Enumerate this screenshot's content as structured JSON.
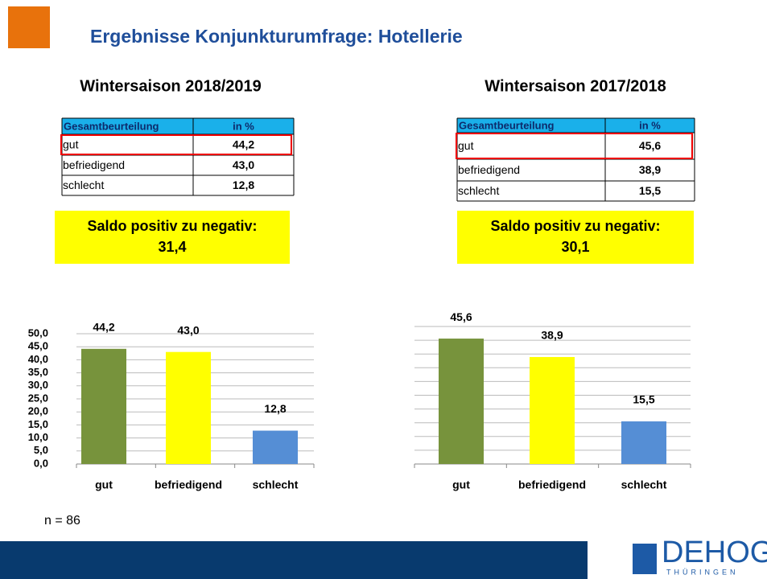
{
  "header": {
    "title": "Ergebnisse Konjunkturumfrage: Hotellerie"
  },
  "panels": [
    {
      "season": "Wintersaison 2018/2019",
      "table": {
        "columns": [
          "Gesamtbeurteilung",
          "in %"
        ],
        "rows": [
          [
            "gut",
            "44,2"
          ],
          [
            "befriedigend",
            "43,0"
          ],
          [
            "schlecht",
            "12,8"
          ]
        ]
      },
      "saldo": {
        "label": "Saldo positiv zu negativ:",
        "value": "31,4"
      }
    },
    {
      "season": "Wintersaison 2017/2018",
      "table": {
        "columns": [
          "Gesamtbeurteilung",
          "in %"
        ],
        "rows": [
          [
            "gut",
            "45,6"
          ],
          [
            "befriedigend",
            "38,9"
          ],
          [
            "schlecht",
            "15,5"
          ]
        ]
      },
      "saldo": {
        "label": "Saldo positiv zu negativ:",
        "value": "30,1"
      }
    }
  ],
  "chart_data": [
    {
      "type": "bar",
      "categories": [
        "gut",
        "befriedigend",
        "schlecht"
      ],
      "values": [
        44.2,
        43.0,
        12.8
      ],
      "value_labels": [
        "44,2",
        "43,0",
        "12,8"
      ],
      "colors": [
        "#77933c",
        "#ffff00",
        "#558ed5"
      ],
      "ylim": [
        0,
        50
      ],
      "grid": true,
      "tick_labels": true,
      "yticks": [
        {
          "value": 0,
          "label": "0,0"
        },
        {
          "value": 5,
          "label": "5,0"
        },
        {
          "value": 10,
          "label": "10,0"
        },
        {
          "value": 15,
          "label": "15,0"
        },
        {
          "value": 20,
          "label": "20,0"
        },
        {
          "value": 25,
          "label": "25,0"
        },
        {
          "value": 30,
          "label": "30,0"
        },
        {
          "value": 35,
          "label": "35,0"
        },
        {
          "value": 40,
          "label": "40,0"
        },
        {
          "value": 45,
          "label": "45,0"
        },
        {
          "value": 50,
          "label": "50,0"
        }
      ]
    },
    {
      "type": "bar",
      "categories": [
        "gut",
        "befriedigend",
        "schlecht"
      ],
      "values": [
        45.6,
        38.9,
        15.5
      ],
      "value_labels": [
        "45,6",
        "38,9",
        "15,5"
      ],
      "colors": [
        "#77933c",
        "#ffff00",
        "#558ed5"
      ],
      "ylim": [
        0,
        50
      ],
      "grid": true,
      "tick_labels": false,
      "yticks": [
        0,
        5,
        10,
        15,
        20,
        25,
        30,
        35,
        40,
        45,
        50
      ]
    }
  ],
  "footnote": "n = 86",
  "logo": {
    "name": "DEHOGA",
    "sub": "THÜRINGEN"
  }
}
